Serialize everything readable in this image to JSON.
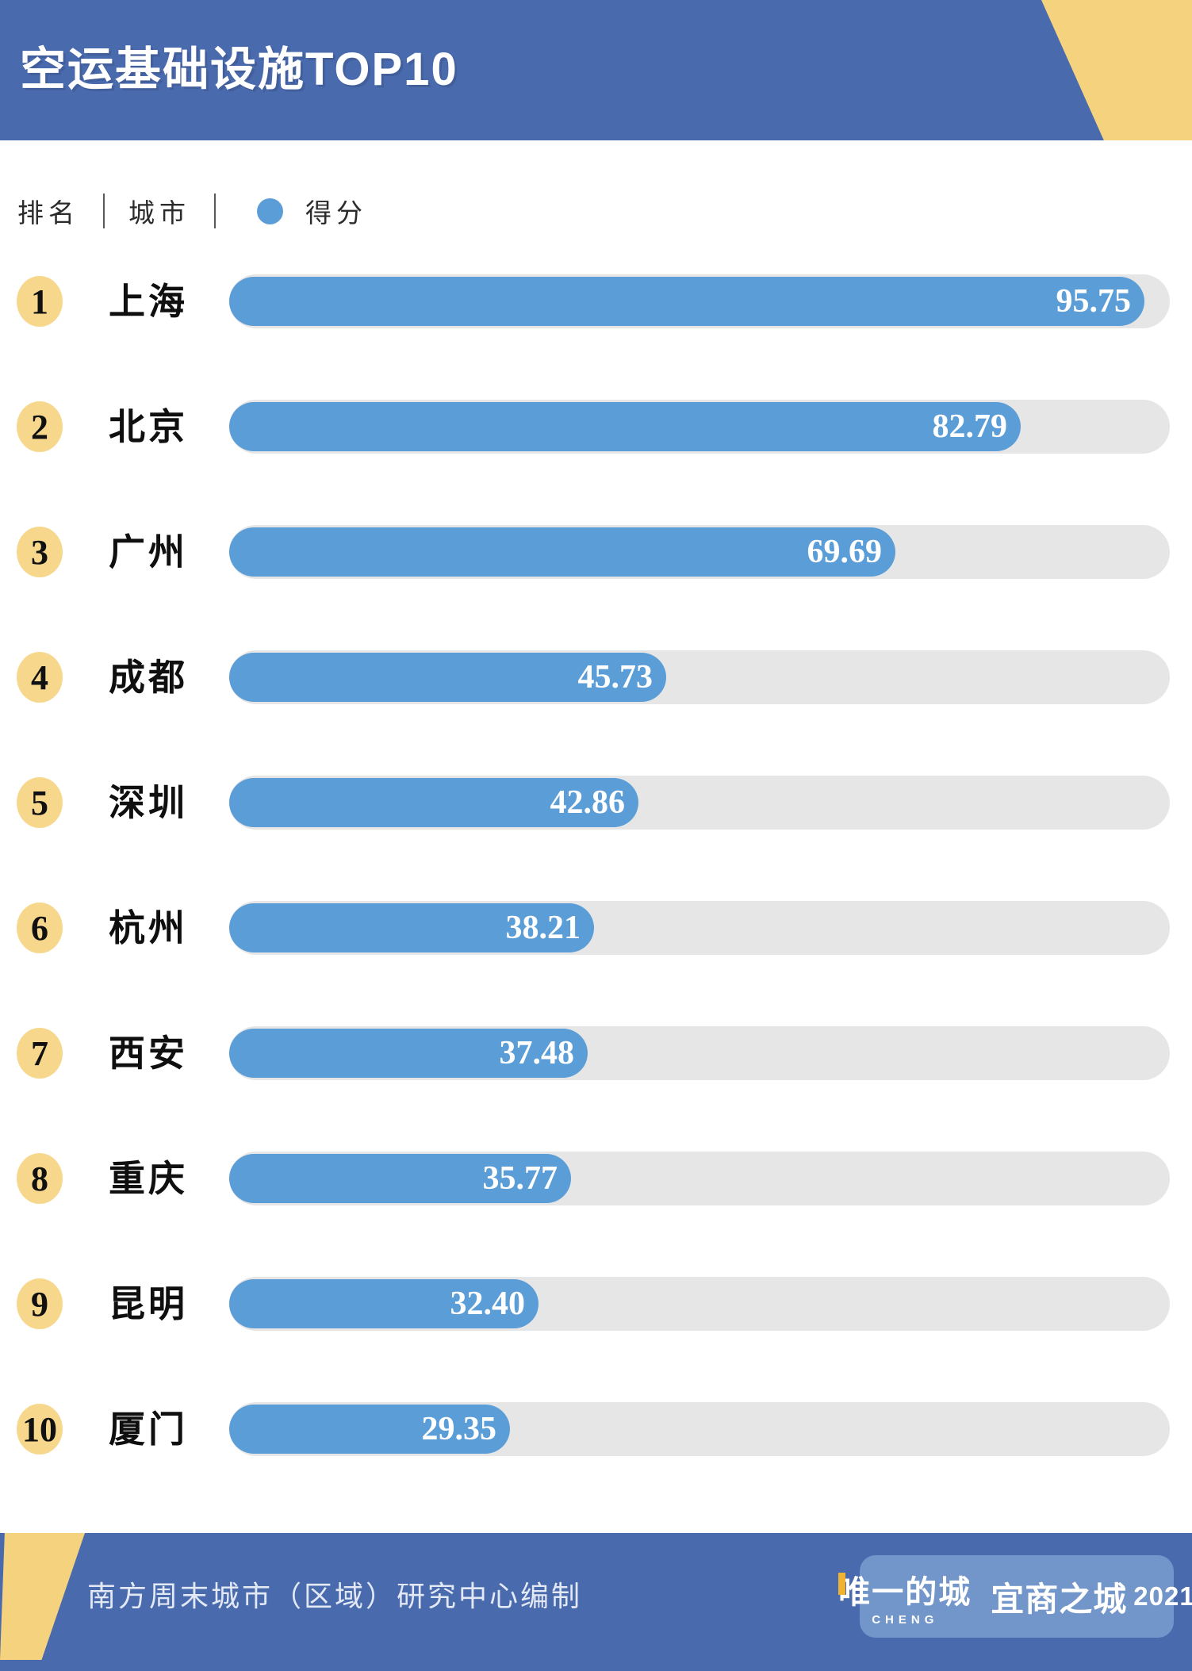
{
  "header": {
    "title": "空运基础设施TOP10"
  },
  "legend": {
    "rank_label": "排名",
    "city_label": "城市",
    "score_label": "得分"
  },
  "chart_data": {
    "type": "bar",
    "orientation": "horizontal",
    "title": "空运基础设施TOP10",
    "categories": [
      "上海",
      "北京",
      "广州",
      "成都",
      "深圳",
      "杭州",
      "西安",
      "重庆",
      "昆明",
      "厦门"
    ],
    "ranks": [
      1,
      2,
      3,
      4,
      5,
      6,
      7,
      8,
      9,
      10
    ],
    "values": [
      95.75,
      82.79,
      69.69,
      45.73,
      42.86,
      38.21,
      37.48,
      35.77,
      32.4,
      29.35
    ],
    "value_labels": [
      "95.75",
      "82.79",
      "69.69",
      "45.73",
      "42.86",
      "38.21",
      "37.48",
      "35.77",
      "32.40",
      "29.35"
    ],
    "series_name": "得分",
    "xlim": [
      0,
      100
    ],
    "grid": false,
    "legend_position": "top-left",
    "value_label_position": "inside-end",
    "bar_color": "#5b9ed7",
    "track_color": "#e6e6e6"
  },
  "footer": {
    "credit": "南方周末城市（区域）研究中心编制",
    "logo": {
      "brand": "唯一的城",
      "brand_sub": "CHENG",
      "series": "宜商之城",
      "year": "2021"
    }
  },
  "colors": {
    "banner_blue": "#4a6aae",
    "bar_blue": "#5b9ed7",
    "track_gray": "#e6e6e6",
    "corner_yellow": "#f4d27e",
    "rank_badge_yellow": "#f6d78c",
    "logo_badge_blue": "#7295ca",
    "logo_accent_orange": "#f0b232"
  }
}
